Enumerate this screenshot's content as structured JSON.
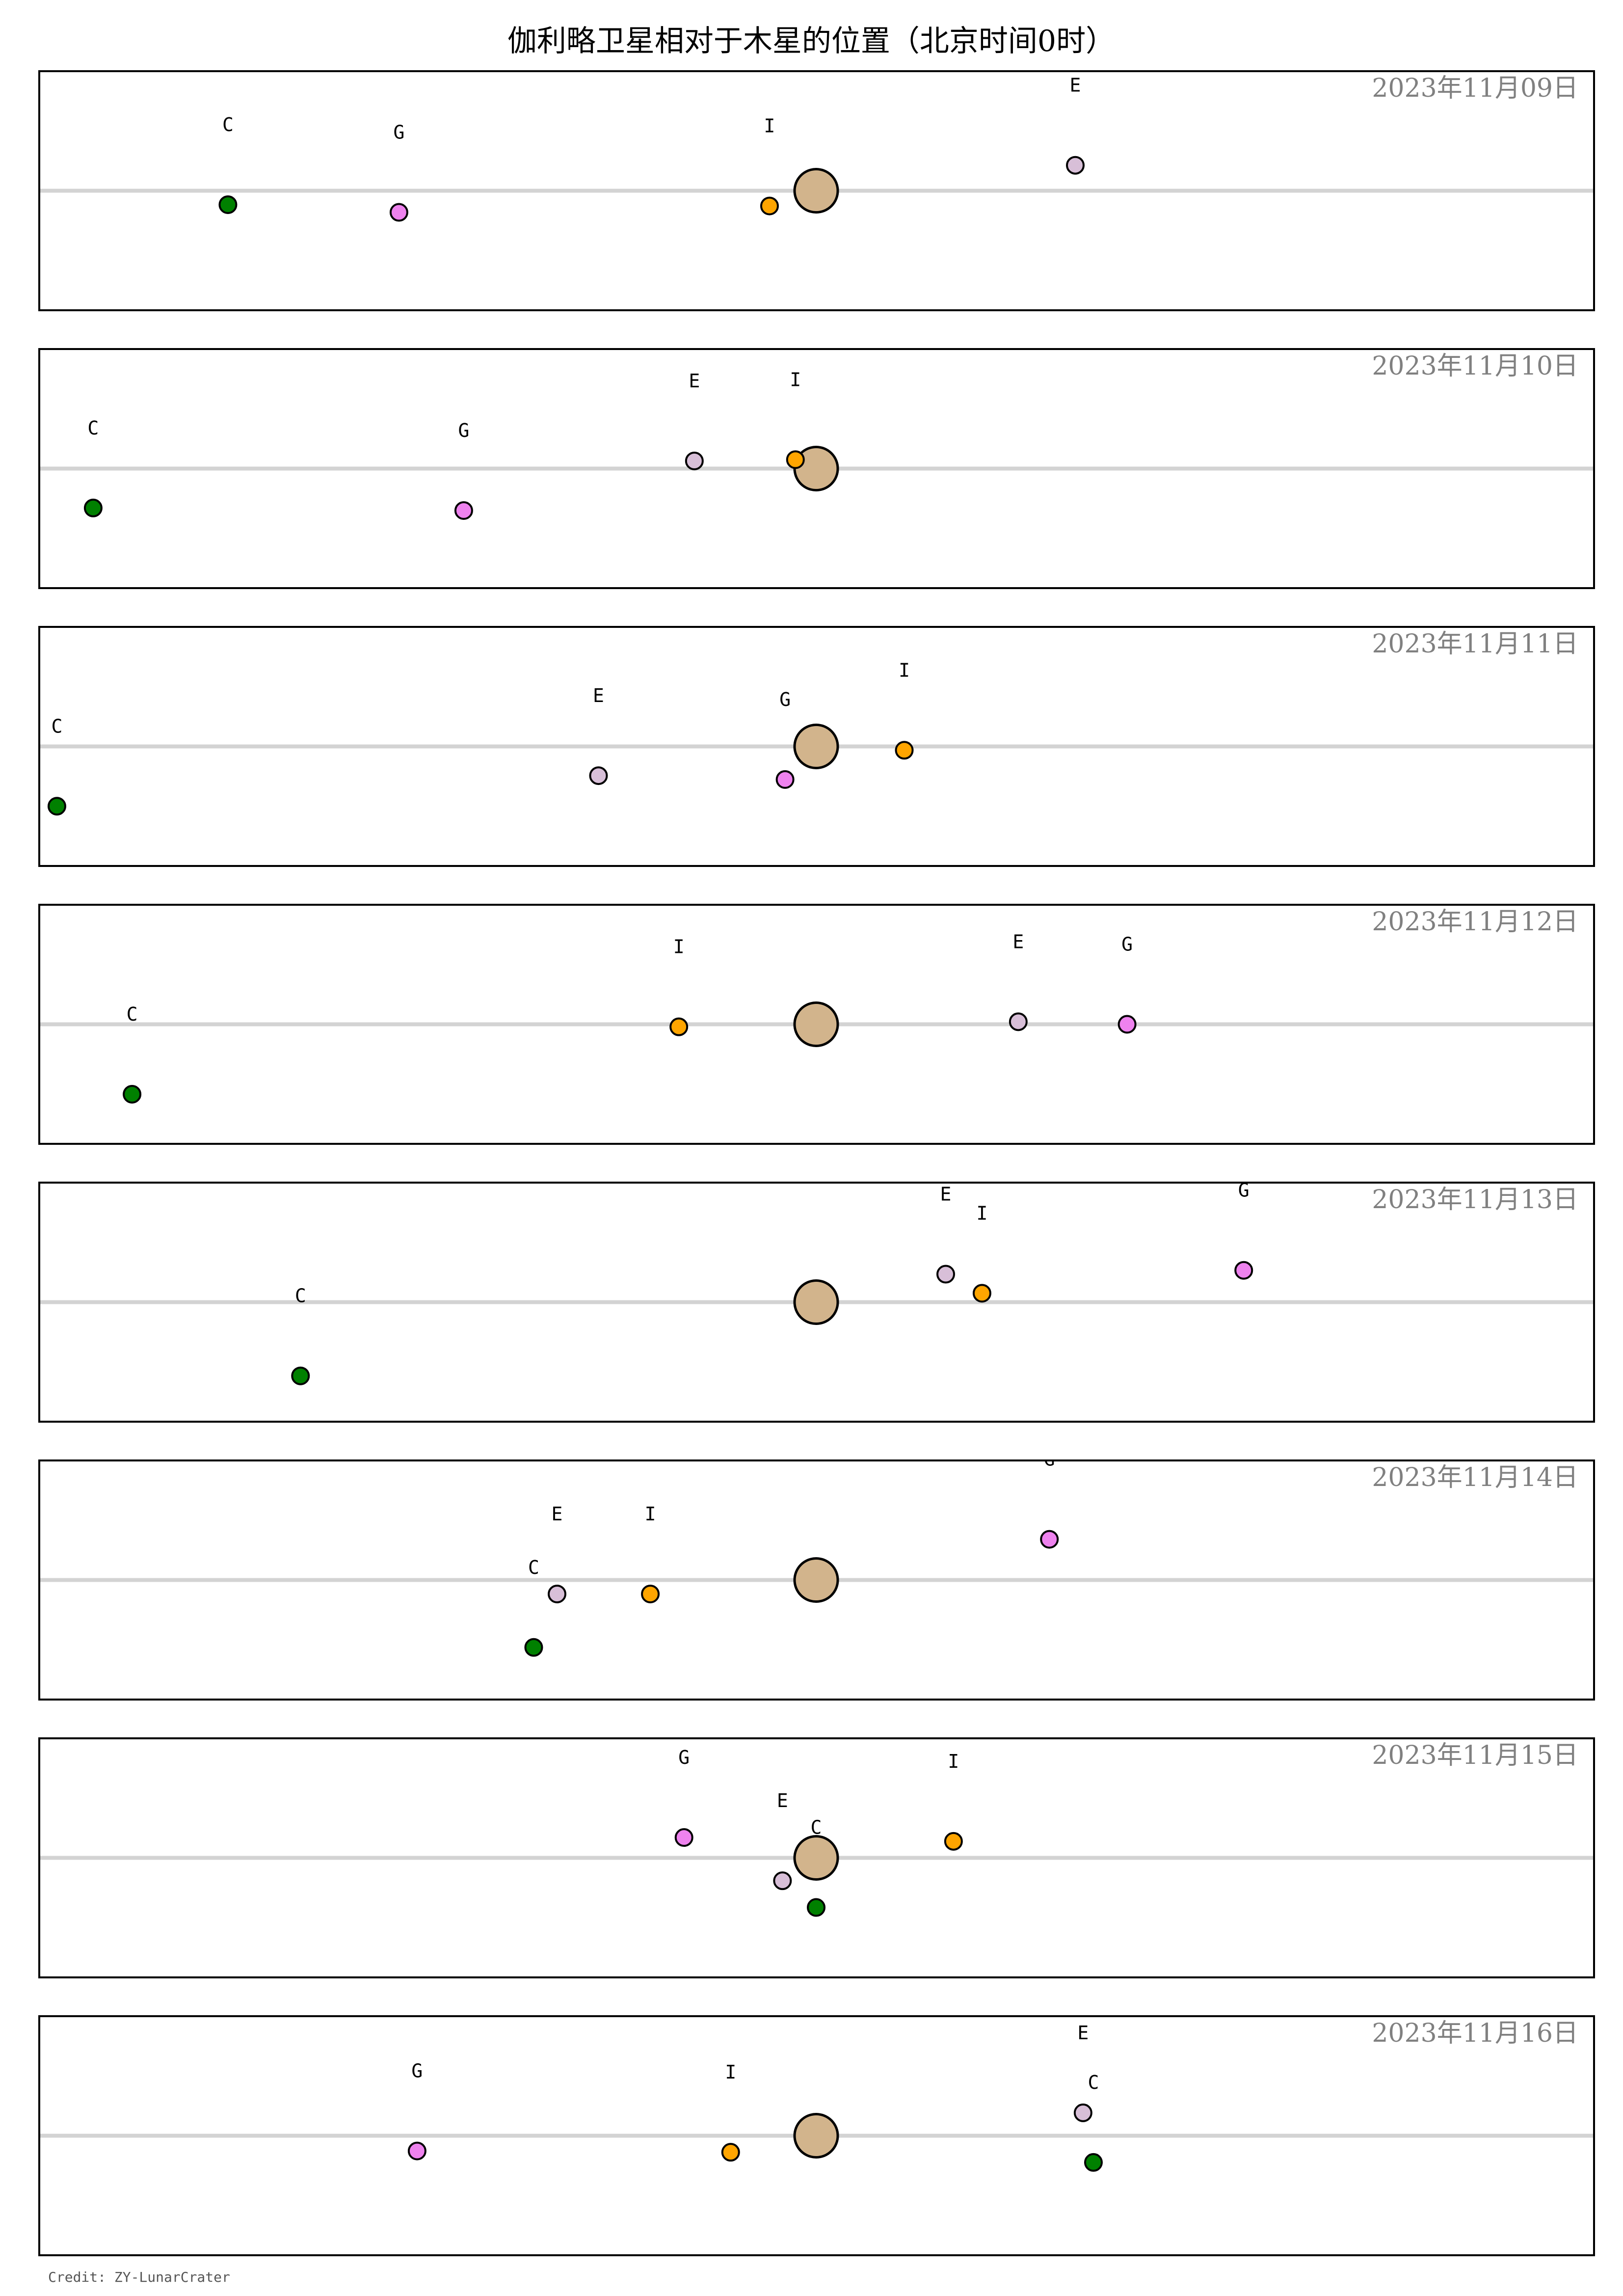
{
  "title": "伽利略卫星相对于木星的位置（北京时间0时）",
  "credit": "Credit: ZY-LunarCrater",
  "colors": {
    "jupiter": "#D2B48C",
    "I": "#FFA500",
    "E": "#D8BFD8",
    "G": "#EE82EE",
    "C": "#008000",
    "axis_line": "#D3D3D3",
    "date_text": "#808080"
  },
  "chart_data": {
    "type": "scatter",
    "title": "伽利略卫星相对于木星的位置（北京时间0时）",
    "description_units": "x and y are offsets from Jupiter in Jupiter radii (east positive to the right, north up)",
    "xlim": [
      -30,
      30
    ],
    "ylim": [
      -4.7,
      4.7
    ],
    "center_line": true,
    "series": [
      {
        "name": "I"
      },
      {
        "name": "E"
      },
      {
        "name": "G"
      },
      {
        "name": "C"
      }
    ],
    "panels": [
      {
        "date": "2023年11月09日",
        "moons": [
          {
            "id": "C",
            "x": -22.7,
            "y": -0.55
          },
          {
            "id": "G",
            "x": -16.1,
            "y": -0.85
          },
          {
            "id": "I",
            "x": -1.8,
            "y": -0.6
          },
          {
            "id": "E",
            "x": 10.0,
            "y": 1.0
          }
        ]
      },
      {
        "date": "2023年11月10日",
        "moons": [
          {
            "id": "C",
            "x": -27.9,
            "y": -1.55
          },
          {
            "id": "G",
            "x": -13.6,
            "y": -1.65
          },
          {
            "id": "E",
            "x": -4.7,
            "y": 0.3
          },
          {
            "id": "I",
            "x": -0.8,
            "y": 0.35
          }
        ]
      },
      {
        "date": "2023年11月11日",
        "moons": [
          {
            "id": "C",
            "x": -29.3,
            "y": -2.35
          },
          {
            "id": "E",
            "x": -8.4,
            "y": -1.15
          },
          {
            "id": "G",
            "x": -1.2,
            "y": -1.3
          },
          {
            "id": "I",
            "x": 3.4,
            "y": -0.15
          }
        ]
      },
      {
        "date": "2023年11月12日",
        "moons": [
          {
            "id": "C",
            "x": -26.4,
            "y": -2.75
          },
          {
            "id": "I",
            "x": -5.3,
            "y": -0.1
          },
          {
            "id": "E",
            "x": 7.8,
            "y": 0.1
          },
          {
            "id": "G",
            "x": 12.0,
            "y": 0.0
          }
        ]
      },
      {
        "date": "2023年11月13日",
        "moons": [
          {
            "id": "C",
            "x": -19.9,
            "y": -2.9
          },
          {
            "id": "E",
            "x": 5.0,
            "y": 1.1
          },
          {
            "id": "I",
            "x": 6.4,
            "y": 0.35
          },
          {
            "id": "G",
            "x": 16.5,
            "y": 1.25
          }
        ]
      },
      {
        "date": "2023年11月14日",
        "moons": [
          {
            "id": "C",
            "x": -10.9,
            "y": -2.65
          },
          {
            "id": "E",
            "x": -10.0,
            "y": -0.55
          },
          {
            "id": "I",
            "x": -6.4,
            "y": -0.55
          },
          {
            "id": "G",
            "x": 9.0,
            "y": 1.6
          }
        ]
      },
      {
        "date": "2023年11月15日",
        "moons": [
          {
            "id": "G",
            "x": -5.1,
            "y": 0.8
          },
          {
            "id": "E",
            "x": -1.3,
            "y": -0.9
          },
          {
            "id": "C",
            "x": 0.0,
            "y": -1.95
          },
          {
            "id": "I",
            "x": 5.3,
            "y": 0.65
          }
        ]
      },
      {
        "date": "2023年11月16日",
        "moons": [
          {
            "id": "G",
            "x": -15.4,
            "y": -0.6
          },
          {
            "id": "I",
            "x": -3.3,
            "y": -0.65
          },
          {
            "id": "E",
            "x": 10.3,
            "y": 0.9
          },
          {
            "id": "C",
            "x": 10.7,
            "y": -1.05
          }
        ]
      }
    ]
  }
}
